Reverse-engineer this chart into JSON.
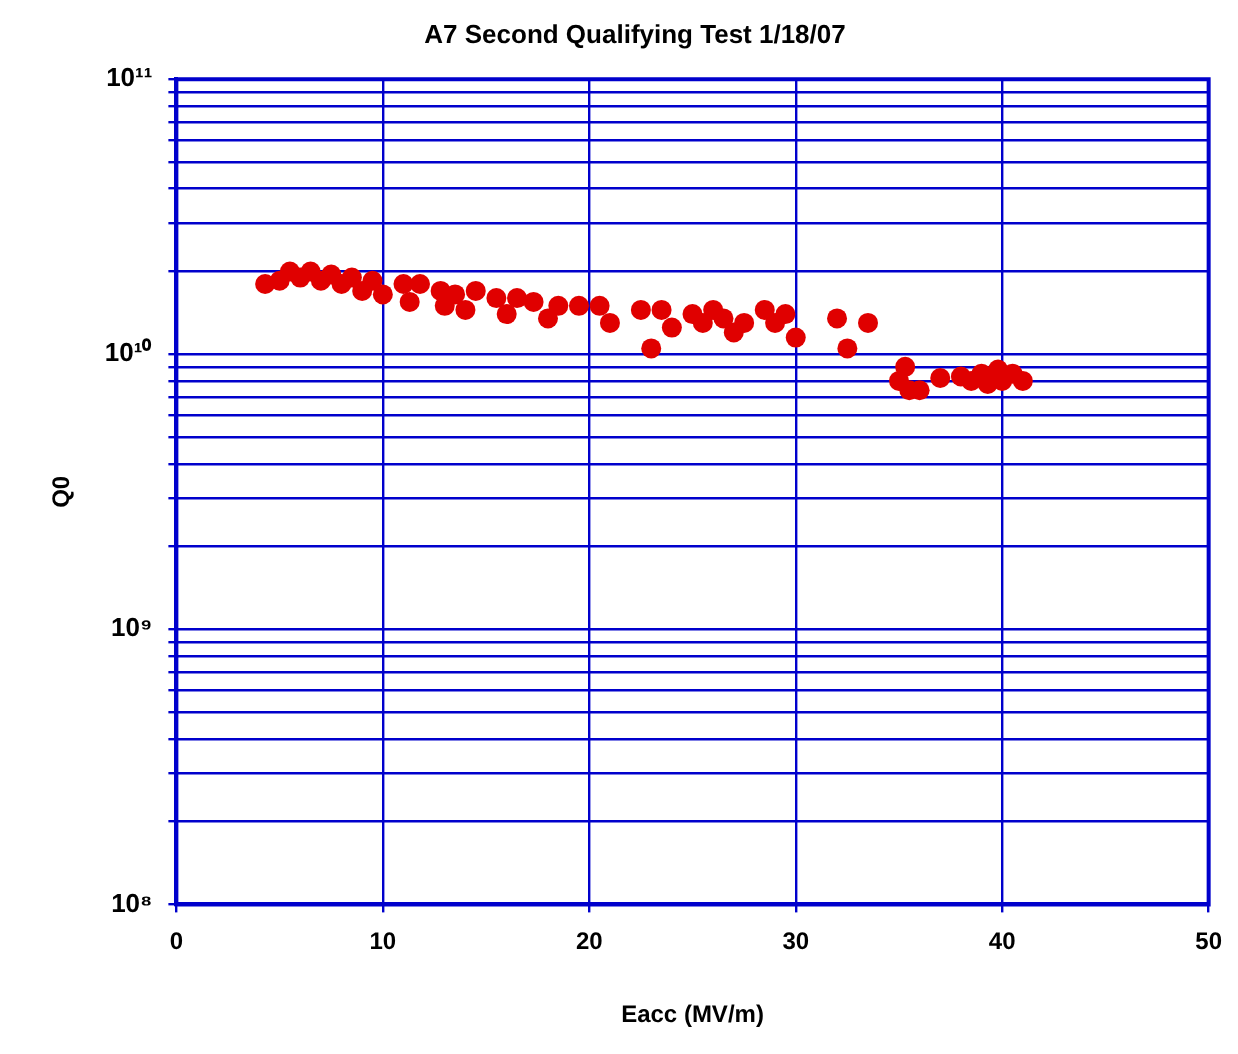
{
  "chart_data": {
    "type": "scatter",
    "title": "A7 Second Qualifying Test 1/18/07",
    "xlabel": "Eacc (MV/m)",
    "ylabel": "Q0",
    "log": "y",
    "grid": true,
    "marker": "circle",
    "legend": false,
    "xlim": [
      0,
      50
    ],
    "xticks": [
      0,
      10,
      20,
      30,
      40,
      50
    ],
    "ylim": [
      100000000,
      100000000000
    ],
    "yticks": [
      {
        "value": 100000000,
        "label": "10⁸"
      },
      {
        "value": 200000000,
        "label": null
      },
      {
        "value": 300000000,
        "label": null
      },
      {
        "value": 400000000,
        "label": null
      },
      {
        "value": 500000000,
        "label": null
      },
      {
        "value": 600000000,
        "label": null
      },
      {
        "value": 700000000,
        "label": null
      },
      {
        "value": 800000000,
        "label": null
      },
      {
        "value": 900000000,
        "label": null
      },
      {
        "value": 1000000000,
        "label": "10⁹"
      },
      {
        "value": 2000000000,
        "label": null
      },
      {
        "value": 3000000000,
        "label": null
      },
      {
        "value": 4000000000,
        "label": null
      },
      {
        "value": 5000000000,
        "label": null
      },
      {
        "value": 6000000000,
        "label": null
      },
      {
        "value": 7000000000,
        "label": null
      },
      {
        "value": 8000000000,
        "label": null
      },
      {
        "value": 9000000000,
        "label": null
      },
      {
        "value": 10000000000,
        "label": "10¹⁰"
      },
      {
        "value": 20000000000,
        "label": null
      },
      {
        "value": 30000000000,
        "label": null
      },
      {
        "value": 40000000000,
        "label": null
      },
      {
        "value": 50000000000,
        "label": null
      },
      {
        "value": 60000000000,
        "label": null
      },
      {
        "value": 70000000000,
        "label": null
      },
      {
        "value": 80000000000,
        "label": null
      },
      {
        "value": 90000000000,
        "label": null
      },
      {
        "value": 100000000000,
        "label": "10¹¹"
      }
    ],
    "x": [
      4.3,
      5,
      5.5,
      6,
      6.5,
      7,
      7.5,
      8,
      8.5,
      9,
      9.5,
      10,
      11,
      11.3,
      11.8,
      12.8,
      13,
      13.5,
      14,
      14.5,
      15.5,
      16,
      16.5,
      17.3,
      18,
      18.5,
      19.5,
      20.5,
      21,
      22.5,
      23,
      23.5,
      24,
      25,
      25.5,
      26,
      26.5,
      27,
      27.5,
      28.5,
      29,
      29.5,
      30,
      32,
      32.5,
      33.5,
      35,
      35.3,
      35.5,
      36,
      37,
      38,
      38.5,
      39,
      39.3,
      39.8,
      40,
      40.5,
      41
    ],
    "series": [
      {
        "color": "#e00000",
        "values": [
          18000000000.0,
          18500000000.0,
          20000000000.0,
          19000000000.0,
          20000000000.0,
          18500000000.0,
          19500000000.0,
          18000000000.0,
          19000000000.0,
          17000000000.0,
          18500000000.0,
          16500000000.0,
          18000000000.0,
          15500000000.0,
          18000000000.0,
          17000000000.0,
          15000000000.0,
          16500000000.0,
          14500000000.0,
          17000000000.0,
          16000000000.0,
          14000000000.0,
          16000000000.0,
          15500000000.0,
          13500000000.0,
          15000000000.0,
          15000000000.0,
          15000000000.0,
          13000000000.0,
          14500000000.0,
          10500000000.0,
          14500000000.0,
          12500000000.0,
          14000000000.0,
          13000000000.0,
          14500000000.0,
          13500000000.0,
          12000000000.0,
          13000000000.0,
          14500000000.0,
          13000000000.0,
          14000000000.0,
          11500000000.0,
          13500000000.0,
          10500000000.0,
          13000000000.0,
          8000000000.0,
          9000000000.0,
          7400000000.0,
          7400000000.0,
          8200000000.0,
          8300000000.0,
          8000000000.0,
          8500000000.0,
          7800000000.0,
          8800000000.0,
          8000000000.0,
          8500000000.0,
          8000000000.0
        ]
      }
    ]
  }
}
